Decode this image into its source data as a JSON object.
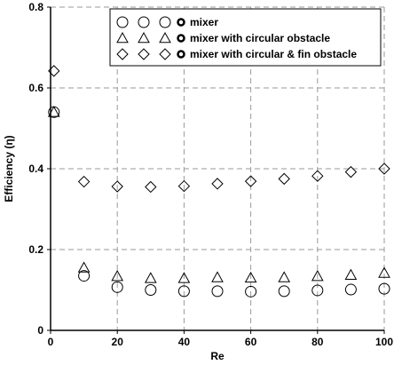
{
  "chart_data": {
    "type": "scatter",
    "xlabel": "Re",
    "ylabel": "Efficiency (η)",
    "xlim": [
      0,
      100
    ],
    "ylim": [
      0,
      0.8
    ],
    "x_ticks": [
      "0",
      "20",
      "40",
      "60",
      "80",
      "100"
    ],
    "y_ticks": [
      "0",
      "0.2",
      "0.4",
      "0.6",
      "0.8"
    ],
    "grid": true,
    "legend_position": "top-right",
    "series": [
      {
        "name": "mixer",
        "marker": "circle",
        "points": [
          {
            "x": 1,
            "y": 0.54
          },
          {
            "x": 10,
            "y": 0.135
          },
          {
            "x": 20,
            "y": 0.107
          },
          {
            "x": 30,
            "y": 0.1
          },
          {
            "x": 40,
            "y": 0.097
          },
          {
            "x": 50,
            "y": 0.097
          },
          {
            "x": 60,
            "y": 0.096
          },
          {
            "x": 70,
            "y": 0.097
          },
          {
            "x": 80,
            "y": 0.099
          },
          {
            "x": 90,
            "y": 0.101
          },
          {
            "x": 100,
            "y": 0.103
          }
        ]
      },
      {
        "name": "mixer with circular obstacle",
        "marker": "triangle",
        "points": [
          {
            "x": 1,
            "y": 0.54
          },
          {
            "x": 10,
            "y": 0.155
          },
          {
            "x": 20,
            "y": 0.134
          },
          {
            "x": 30,
            "y": 0.129
          },
          {
            "x": 40,
            "y": 0.129
          },
          {
            "x": 50,
            "y": 0.131
          },
          {
            "x": 60,
            "y": 0.13
          },
          {
            "x": 70,
            "y": 0.131
          },
          {
            "x": 80,
            "y": 0.134
          },
          {
            "x": 90,
            "y": 0.137
          },
          {
            "x": 100,
            "y": 0.142
          }
        ]
      },
      {
        "name": "mixer with circular & fin obstacle",
        "marker": "diamond",
        "points": [
          {
            "x": 1,
            "y": 0.642
          },
          {
            "x": 10,
            "y": 0.368
          },
          {
            "x": 20,
            "y": 0.356
          },
          {
            "x": 30,
            "y": 0.355
          },
          {
            "x": 40,
            "y": 0.357
          },
          {
            "x": 50,
            "y": 0.363
          },
          {
            "x": 60,
            "y": 0.369
          },
          {
            "x": 70,
            "y": 0.375
          },
          {
            "x": 80,
            "y": 0.382
          },
          {
            "x": 90,
            "y": 0.392
          },
          {
            "x": 100,
            "y": 0.4
          }
        ]
      }
    ]
  },
  "colors": {
    "marker_stroke": "#000000",
    "grid": "#9a9a9a",
    "axis": "#000000"
  }
}
